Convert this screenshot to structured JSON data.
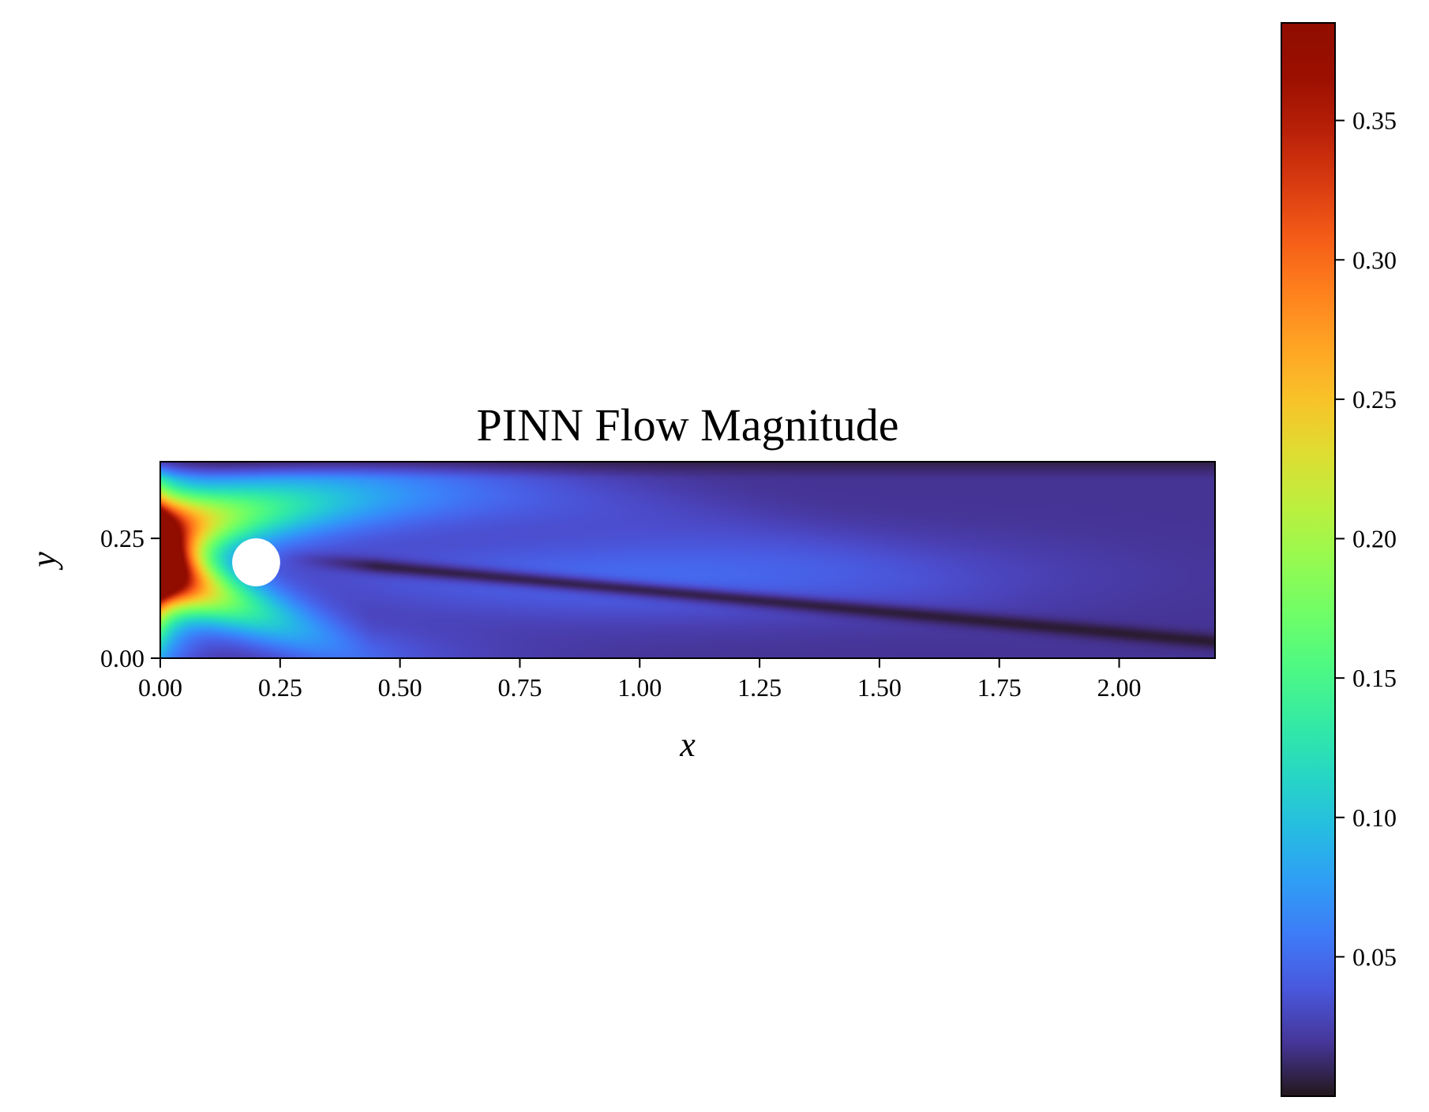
{
  "chart_data": {
    "type": "heatmap",
    "title": "PINN Flow Magnitude",
    "xlabel": "x",
    "ylabel": "y",
    "xlim": [
      0.0,
      2.2
    ],
    "ylim": [
      0.0,
      0.41
    ],
    "x_ticks": [
      "0.00",
      "0.25",
      "0.50",
      "0.75",
      "1.00",
      "1.25",
      "1.50",
      "1.75",
      "2.00"
    ],
    "x_tick_values": [
      0.0,
      0.25,
      0.5,
      0.75,
      1.0,
      1.25,
      1.5,
      1.75,
      2.0
    ],
    "y_ticks": [
      "0.00",
      "0.25"
    ],
    "y_tick_values": [
      0.0,
      0.25
    ],
    "colormap": "turbo",
    "colorbar": {
      "min": 0.0,
      "max": 0.385,
      "ticks": [
        "0.05",
        "0.10",
        "0.15",
        "0.20",
        "0.25",
        "0.30",
        "0.35"
      ],
      "tick_values": [
        0.05,
        0.1,
        0.15,
        0.2,
        0.25,
        0.3,
        0.35
      ]
    },
    "obstacle": {
      "shape": "circle",
      "cx": 0.2,
      "cy": 0.2,
      "r": 0.05
    },
    "grid": false
  }
}
